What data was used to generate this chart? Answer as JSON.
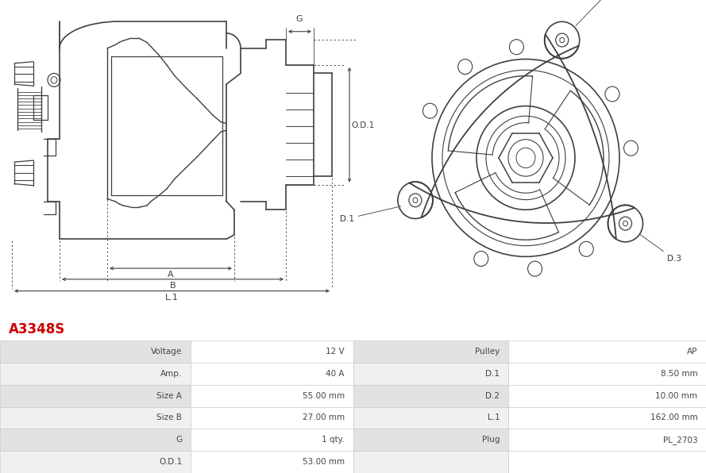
{
  "title": "A3348S",
  "title_color": "#cc0000",
  "background_color": "#ffffff",
  "table_data": {
    "left_labels": [
      "Voltage",
      "Amp.",
      "Size A",
      "Size B",
      "G",
      "O.D.1"
    ],
    "left_values": [
      "12 V",
      "40 A",
      "55.00 mm",
      "27.00 mm",
      "1 qty.",
      "53.00 mm"
    ],
    "right_labels": [
      "Pulley",
      "D.1",
      "D.2",
      "L.1",
      "Plug",
      ""
    ],
    "right_values": [
      "AP",
      "8.50 mm",
      "10.00 mm",
      "162.00 mm",
      "PL_2703",
      ""
    ]
  },
  "row_colors": [
    "#e2e2e2",
    "#f0f0f0",
    "#e2e2e2",
    "#f0f0f0",
    "#e2e2e2",
    "#f0f0f0"
  ],
  "line_color": "#404040",
  "dim_color": "#404040"
}
